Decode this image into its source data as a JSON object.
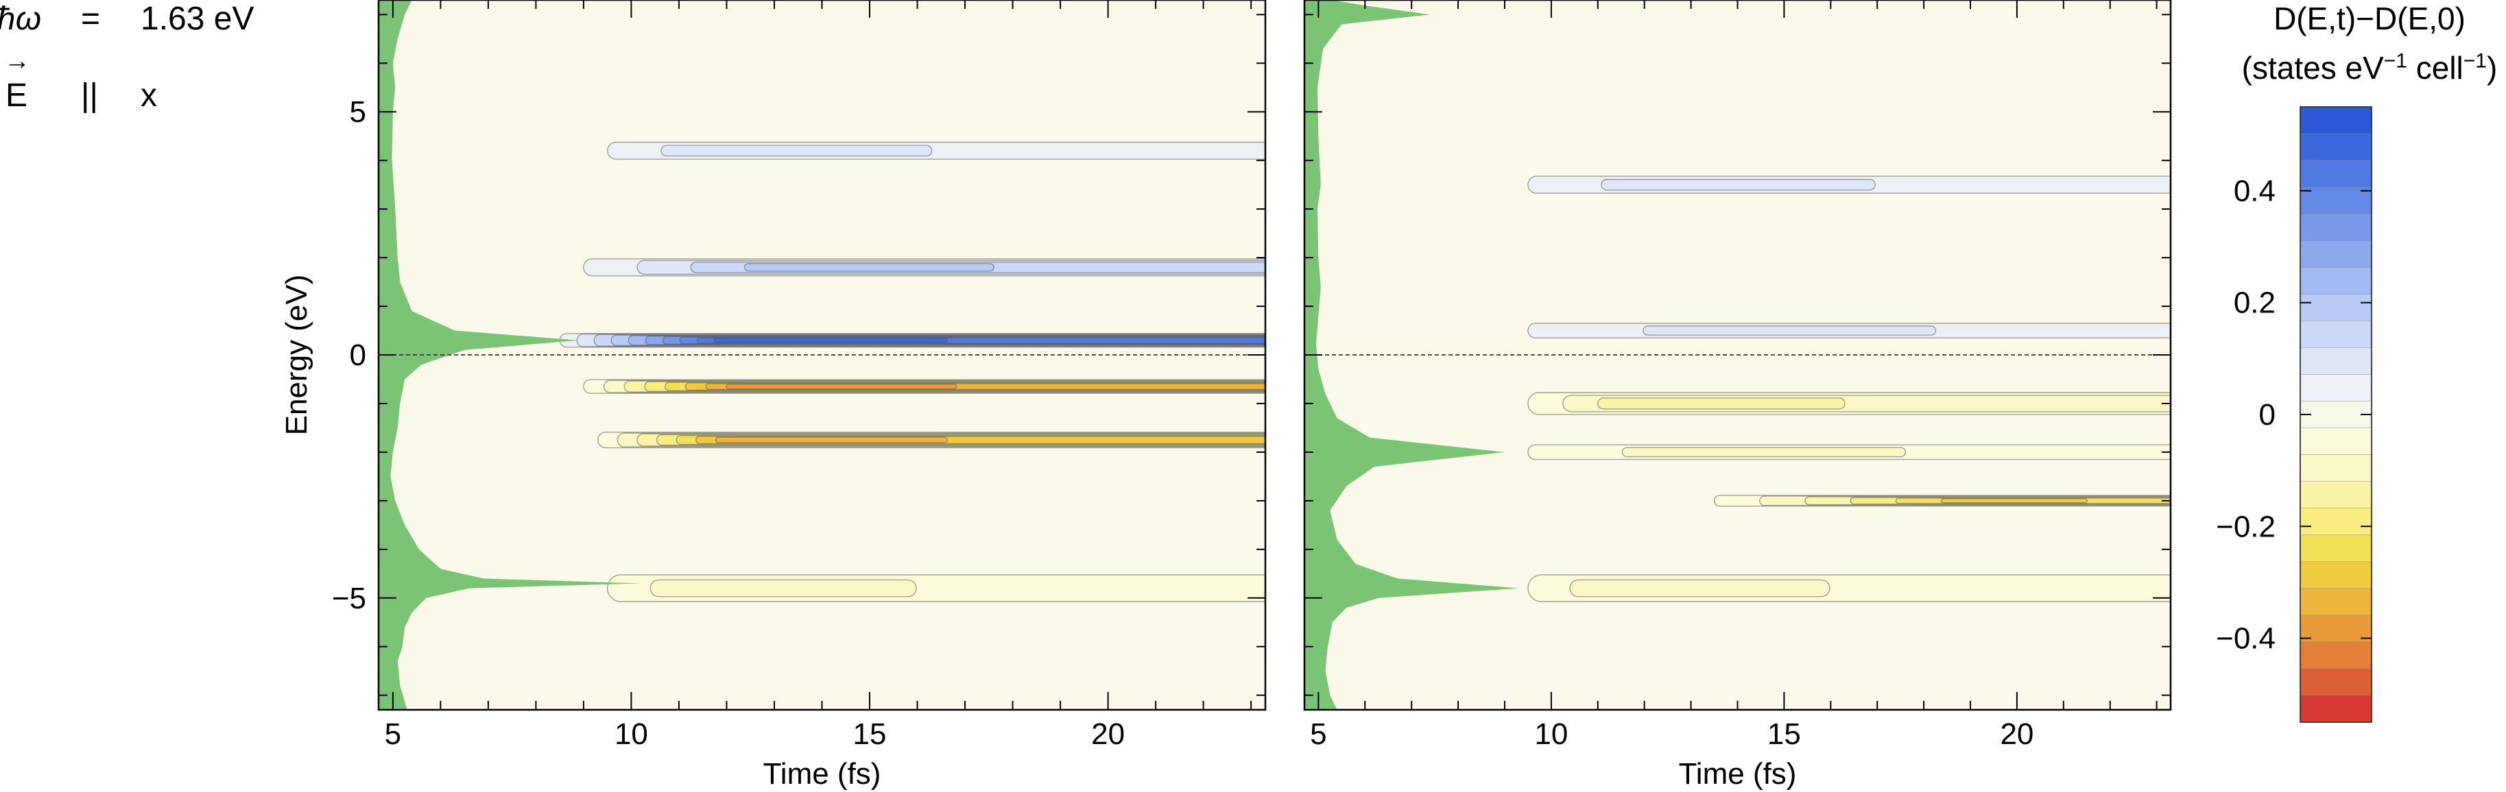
{
  "params": {
    "hbar_omega_symbol": "ħω",
    "equals": "=",
    "energy_value": "1.63 eV",
    "field_symbol": "E",
    "field_arrow": "→",
    "parallel": "||",
    "direction": "x"
  },
  "colorbar": {
    "title_line1": "D(E,t)−D(E,0)",
    "title_line2_prefix": "(states eV",
    "title_line2_exp1": "−1",
    "title_line2_mid": " cell",
    "title_line2_exp2": "−1",
    "title_line2_suffix": ")",
    "range": [
      -0.55,
      0.55
    ],
    "ticks": [
      0.4,
      0.2,
      0,
      -0.2,
      -0.4
    ],
    "tick_labels": [
      "0.4",
      "0.2",
      "0",
      "−0.2",
      "−0.4"
    ],
    "colors_top_to_bottom": [
      "#2c58d8",
      "#3d67dd",
      "#5079e2",
      "#6388e6",
      "#7899ea",
      "#8ca9ee",
      "#a2baf2",
      "#b7cbf5",
      "#cbd8f7",
      "#dfe6f8",
      "#edf0f5",
      "#f6f6ea",
      "#fcfbdc",
      "#fbf8c8",
      "#fbf3a6",
      "#f9ec80",
      "#f4e057",
      "#f0cb3f",
      "#eeb43c",
      "#e99b3a",
      "#e47f38",
      "#dd5f36",
      "#d63a32"
    ]
  },
  "chart_data": [
    {
      "type": "heatmap",
      "panel": "spin-down",
      "spin_label": "↓",
      "xlabel": "Time (fs)",
      "ylabel": "Energy (eV)",
      "xlim": [
        4.7,
        23.3
      ],
      "ylim": [
        -7.3,
        7.3
      ],
      "x_ticks": [
        5,
        10,
        15,
        20
      ],
      "y_ticks": [
        5,
        0,
        -5
      ],
      "y_tick_labels": [
        "5",
        "0",
        "−5"
      ],
      "fermi_level": 0,
      "dos_profile": [
        [
          -7.3,
          0.6
        ],
        [
          -6.8,
          0.45
        ],
        [
          -6.3,
          0.4
        ],
        [
          -6,
          0.5
        ],
        [
          -5.6,
          0.55
        ],
        [
          -5.3,
          0.7
        ],
        [
          -5.0,
          1.0
        ],
        [
          -4.8,
          1.9
        ],
        [
          -4.7,
          5.5
        ],
        [
          -4.6,
          2.2
        ],
        [
          -4.4,
          1.3
        ],
        [
          -4.0,
          0.85
        ],
        [
          -3.5,
          0.55
        ],
        [
          -3.0,
          0.35
        ],
        [
          -2.5,
          0.25
        ],
        [
          -2.0,
          0.3
        ],
        [
          -1.5,
          0.4
        ],
        [
          -1.0,
          0.45
        ],
        [
          -0.5,
          0.55
        ],
        [
          -0.2,
          0.9
        ],
        [
          0.1,
          1.8
        ],
        [
          0.3,
          4.2
        ],
        [
          0.5,
          1.6
        ],
        [
          0.9,
          0.7
        ],
        [
          1.5,
          0.45
        ],
        [
          2.0,
          0.4
        ],
        [
          3.0,
          0.35
        ],
        [
          4.0,
          0.28
        ],
        [
          5.0,
          0.3
        ],
        [
          5.5,
          0.35
        ],
        [
          6.0,
          0.3
        ],
        [
          6.5,
          0.4
        ],
        [
          7.0,
          0.55
        ],
        [
          7.3,
          0.7
        ]
      ],
      "bands": [
        {
          "energy": 0.3,
          "value": 0.5,
          "t_start": 8.5,
          "t_peak": 12.5,
          "width": 0.28
        },
        {
          "energy": 1.8,
          "value": 0.22,
          "t_start": 9.0,
          "t_peak": 14.0,
          "width": 0.35
        },
        {
          "energy": 4.2,
          "value": 0.06,
          "t_start": 9.5,
          "t_peak": 12.0,
          "width": 0.35
        },
        {
          "energy": -0.65,
          "value": -0.42,
          "t_start": 9.0,
          "t_peak": 12.8,
          "width": 0.28
        },
        {
          "energy": -1.75,
          "value": -0.34,
          "t_start": 9.3,
          "t_peak": 12.5,
          "width": 0.32
        },
        {
          "energy": -4.8,
          "value": -0.06,
          "t_start": 9.5,
          "t_peak": 11.5,
          "width": 0.55
        }
      ]
    },
    {
      "type": "heatmap",
      "panel": "spin-up",
      "spin_label": "↑",
      "xlabel": "Time (fs)",
      "ylabel": "",
      "xlim": [
        4.7,
        23.3
      ],
      "ylim": [
        -7.3,
        7.3
      ],
      "x_ticks": [
        5,
        10,
        15,
        20
      ],
      "y_ticks": [
        5,
        0,
        -5
      ],
      "y_tick_labels": [
        "5",
        "0",
        "−5"
      ],
      "fermi_level": 0,
      "dos_profile": [
        [
          -7.3,
          0.7
        ],
        [
          -7.0,
          0.55
        ],
        [
          -6.5,
          0.45
        ],
        [
          -6.0,
          0.5
        ],
        [
          -5.5,
          0.6
        ],
        [
          -5.2,
          0.9
        ],
        [
          -5.0,
          1.6
        ],
        [
          -4.8,
          4.6
        ],
        [
          -4.6,
          2.0
        ],
        [
          -4.3,
          1.1
        ],
        [
          -3.8,
          0.7
        ],
        [
          -3.2,
          0.55
        ],
        [
          -2.7,
          0.9
        ],
        [
          -2.3,
          1.5
        ],
        [
          -2.0,
          4.3
        ],
        [
          -1.7,
          1.4
        ],
        [
          -1.3,
          0.7
        ],
        [
          -0.8,
          0.45
        ],
        [
          -0.3,
          0.3
        ],
        [
          0.2,
          0.25
        ],
        [
          0.8,
          0.3
        ],
        [
          1.4,
          0.35
        ],
        [
          2.0,
          0.3
        ],
        [
          3.0,
          0.28
        ],
        [
          3.5,
          0.35
        ],
        [
          4.5,
          0.3
        ],
        [
          5.5,
          0.28
        ],
        [
          6.3,
          0.4
        ],
        [
          6.8,
          0.8
        ],
        [
          7.0,
          2.7
        ],
        [
          7.2,
          1.2
        ],
        [
          7.3,
          0.6
        ]
      ],
      "bands": [
        {
          "energy": 0.5,
          "value": 0.12,
          "t_start": 9.5,
          "t_peak": 15.0,
          "width": 0.3
        },
        {
          "energy": 3.5,
          "value": 0.07,
          "t_start": 9.5,
          "t_peak": 13.0,
          "width": 0.35
        },
        {
          "energy": -1.0,
          "value": -0.14,
          "t_start": 9.5,
          "t_peak": 12.0,
          "width": 0.45
        },
        {
          "energy": -2.0,
          "value": -0.12,
          "t_start": 9.5,
          "t_peak": 14.0,
          "width": 0.3
        },
        {
          "energy": -3.0,
          "value": -0.3,
          "t_start": 13.5,
          "t_peak": 20.0,
          "width": 0.22
        },
        {
          "energy": -4.8,
          "value": -0.06,
          "t_start": 9.5,
          "t_peak": 11.5,
          "width": 0.55
        }
      ]
    }
  ]
}
